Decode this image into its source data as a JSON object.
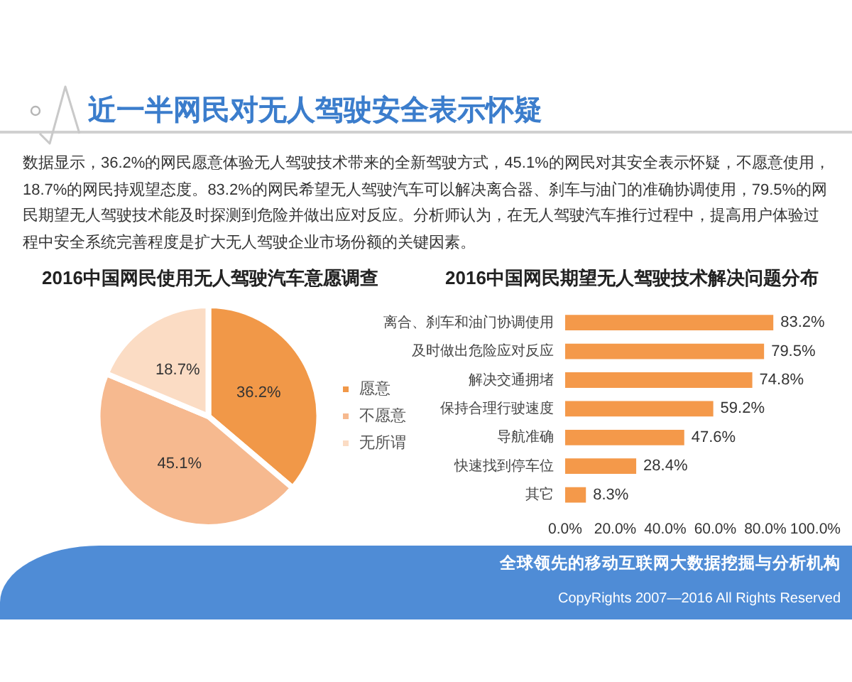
{
  "chart_data": [
    {
      "type": "other",
      "title": "近一半网民对无人驾驶安全表示怀疑",
      "annotations": [
        "数据显示，36.2%的网民愿意体验无人驾驶技术带来的全新驾驶方式，45.1%的网民对其安全表示怀疑，不愿意使用，18.7%的网民持观望态度。83.2%的网民希望无人驾驶汽车可以解决离合器、刹车与油门的准确协调使用，79.5%的网民期望无人驾驶技术能及时探测到危险并做出应对反应。分析师认为，在无人驾驶汽车推行过程中，提高用户体验过程中安全系统完善程度是扩大无人驾驶企业市场份额的关键因素。"
      ]
    },
    {
      "type": "pie",
      "title": "2016中国网民使用无人驾驶汽车意愿调查",
      "categories": [
        "愿意",
        "不愿意",
        "无所谓"
      ],
      "values": [
        36.2,
        45.1,
        18.7
      ],
      "colors": [
        "#f19848",
        "#f6b98f",
        "#fbdcc4"
      ],
      "value_labels": [
        "36.2%",
        "45.1%",
        "18.7%"
      ],
      "legend": "right"
    },
    {
      "type": "bar",
      "orientation": "horizontal",
      "title": "2016中国网民期望无人驾驶技术解决问题分布",
      "categories": [
        "离合、刹车和油门协调使用",
        "及时做出危险应对反应",
        "解决交通拥堵",
        "保持合理行驶速度",
        "导航准确",
        "快速找到停车位",
        "其它"
      ],
      "values": [
        83.2,
        79.5,
        74.8,
        59.2,
        47.6,
        28.4,
        8.3
      ],
      "color": "#f4994a",
      "value_labels": [
        "83.2%",
        "79.5%",
        "74.8%",
        "59.2%",
        "47.6%",
        "28.4%",
        "8.3%"
      ],
      "xlim": [
        0,
        100
      ],
      "xticks": [
        {
          "value": 0,
          "label": "0.0%"
        },
        {
          "value": 20,
          "label": "20.0%"
        },
        {
          "value": 40,
          "label": "40.0%"
        },
        {
          "value": 60,
          "label": "60.0%"
        },
        {
          "value": 80,
          "label": "80.0%"
        },
        {
          "value": 100,
          "label": "100.0%"
        }
      ],
      "grid": false,
      "legend": false
    },
    {
      "type": "other",
      "annotations": [
        "全球领先的移动互联网大数据挖掘与分析机构",
        "CopyRights 2007—2016 All Rights Reserved"
      ]
    }
  ]
}
